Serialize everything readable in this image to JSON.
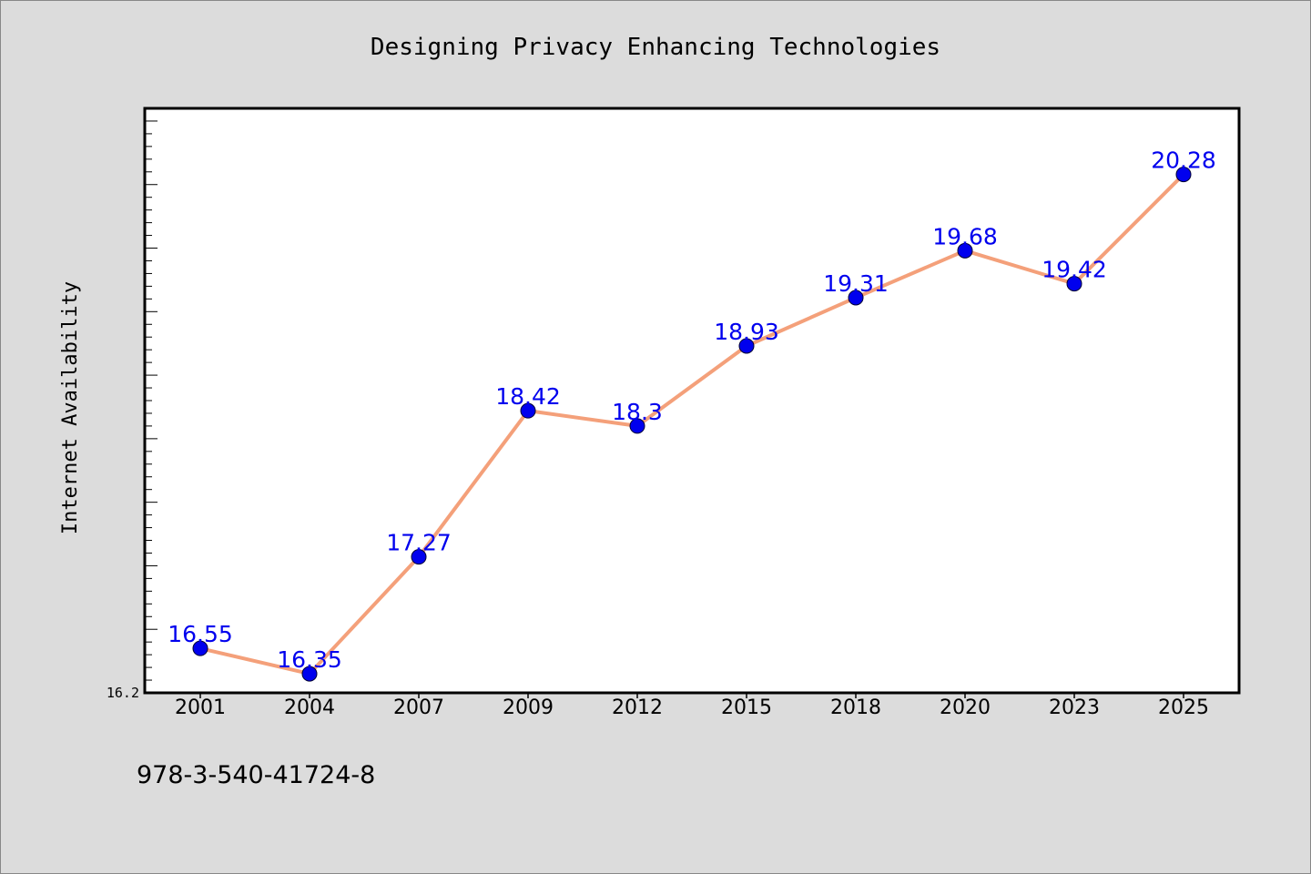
{
  "chart_data": {
    "type": "line",
    "title": "Designing Privacy Enhancing Technologies",
    "xlabel": "",
    "ylabel": "Internet Availability",
    "categories": [
      "2001",
      "2004",
      "2007",
      "2009",
      "2012",
      "2015",
      "2018",
      "2020",
      "2023",
      "2025"
    ],
    "series": [
      {
        "values": [
          16.55,
          16.35,
          17.27,
          18.42,
          18.3,
          18.93,
          19.31,
          19.68,
          19.42,
          20.28
        ]
      }
    ],
    "data_labels": [
      "16.55",
      "16.35",
      "17.27",
      "18.42",
      "18.3",
      "18.93",
      "19.31",
      "19.68",
      "19.42",
      "20.28"
    ],
    "y_tick_labels": [
      "16.2"
    ],
    "ylim": [
      16.2,
      20.8
    ],
    "grid": false,
    "line_color": "#f4a07a",
    "marker_color": "#0000ee",
    "label_color": "#0000ee",
    "plot_background": "#ffffff",
    "page_background": "#dcdcdc"
  },
  "footer": {
    "isbn": "978-3-540-41724-8"
  }
}
